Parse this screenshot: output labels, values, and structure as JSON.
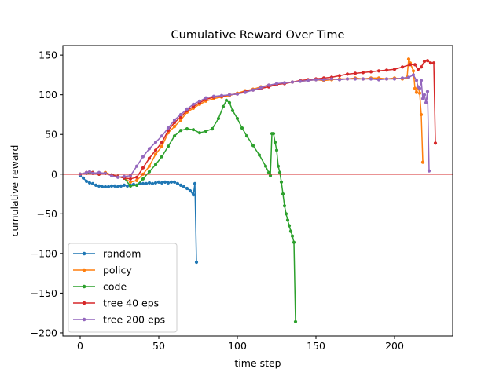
{
  "chart_data": {
    "type": "line",
    "title": "Cumulative Reward Over Time",
    "xlabel": "time step",
    "ylabel": "cumulative reward",
    "xlim": [
      -11,
      237
    ],
    "ylim": [
      -204,
      162
    ],
    "xticks": [
      0,
      50,
      100,
      150,
      200
    ],
    "yticks": [
      -200,
      -150,
      -100,
      -50,
      0,
      50,
      100,
      150
    ],
    "xtick_labels": [
      "0",
      "50",
      "100",
      "150",
      "200"
    ],
    "ytick_labels": [
      "−200",
      "−150",
      "−100",
      "−50",
      "0",
      "50",
      "100",
      "150"
    ],
    "grid": false,
    "legend_position": "lower-left",
    "reference_line": {
      "y": 0,
      "color": "#d62728"
    },
    "series": [
      {
        "name": "random",
        "color": "#1f77b4",
        "points": [
          [
            0,
            -2
          ],
          [
            2,
            -5
          ],
          [
            4,
            -9
          ],
          [
            6,
            -11
          ],
          [
            8,
            -12
          ],
          [
            10,
            -14
          ],
          [
            12,
            -15
          ],
          [
            14,
            -16
          ],
          [
            16,
            -16
          ],
          [
            18,
            -16
          ],
          [
            20,
            -15
          ],
          [
            22,
            -15
          ],
          [
            24,
            -16
          ],
          [
            26,
            -15
          ],
          [
            28,
            -14
          ],
          [
            30,
            -15
          ],
          [
            32,
            -14
          ],
          [
            34,
            -13
          ],
          [
            36,
            -14
          ],
          [
            38,
            -12
          ],
          [
            40,
            -12
          ],
          [
            42,
            -12
          ],
          [
            44,
            -11
          ],
          [
            46,
            -12
          ],
          [
            48,
            -11
          ],
          [
            50,
            -10
          ],
          [
            52,
            -11
          ],
          [
            54,
            -10
          ],
          [
            56,
            -11
          ],
          [
            58,
            -10
          ],
          [
            60,
            -10
          ],
          [
            62,
            -12
          ],
          [
            64,
            -14
          ],
          [
            66,
            -16
          ],
          [
            68,
            -18
          ],
          [
            70,
            -21
          ],
          [
            72,
            -26
          ],
          [
            73,
            -12
          ],
          [
            74,
            -111
          ]
        ]
      },
      {
        "name": "policy",
        "color": "#ff7f0e",
        "points": [
          [
            0,
            0
          ],
          [
            4,
            2
          ],
          [
            8,
            1
          ],
          [
            12,
            0
          ],
          [
            16,
            2
          ],
          [
            20,
            -1
          ],
          [
            24,
            -3
          ],
          [
            28,
            -5
          ],
          [
            32,
            -10
          ],
          [
            36,
            -8
          ],
          [
            40,
            0
          ],
          [
            44,
            10
          ],
          [
            48,
            25
          ],
          [
            52,
            35
          ],
          [
            56,
            52
          ],
          [
            60,
            60
          ],
          [
            64,
            68
          ],
          [
            68,
            78
          ],
          [
            72,
            83
          ],
          [
            76,
            88
          ],
          [
            80,
            92
          ],
          [
            85,
            95
          ],
          [
            90,
            97
          ],
          [
            95,
            99
          ],
          [
            100,
            102
          ],
          [
            105,
            105
          ],
          [
            110,
            107
          ],
          [
            115,
            110
          ],
          [
            120,
            112
          ],
          [
            125,
            113
          ],
          [
            130,
            115
          ],
          [
            135,
            116
          ],
          [
            140,
            117
          ],
          [
            145,
            118
          ],
          [
            150,
            119
          ],
          [
            155,
            118
          ],
          [
            160,
            119
          ],
          [
            165,
            120
          ],
          [
            170,
            120
          ],
          [
            175,
            121
          ],
          [
            180,
            120
          ],
          [
            185,
            121
          ],
          [
            190,
            121
          ],
          [
            195,
            120
          ],
          [
            200,
            121
          ],
          [
            205,
            120
          ],
          [
            208,
            122
          ],
          [
            209,
            145
          ],
          [
            210,
            140
          ],
          [
            212,
            130
          ],
          [
            213,
            108
          ],
          [
            214,
            103
          ],
          [
            215,
            110
          ],
          [
            216,
            102
          ],
          [
            217,
            75
          ],
          [
            218,
            15
          ]
        ]
      },
      {
        "name": "code",
        "color": "#2ca02c",
        "points": [
          [
            0,
            0
          ],
          [
            4,
            1
          ],
          [
            8,
            2
          ],
          [
            12,
            0
          ],
          [
            16,
            1
          ],
          [
            20,
            -1
          ],
          [
            24,
            -3
          ],
          [
            28,
            -5
          ],
          [
            32,
            -15
          ],
          [
            36,
            -14
          ],
          [
            40,
            -6
          ],
          [
            44,
            3
          ],
          [
            48,
            12
          ],
          [
            52,
            22
          ],
          [
            56,
            35
          ],
          [
            60,
            48
          ],
          [
            64,
            55
          ],
          [
            68,
            57
          ],
          [
            72,
            56
          ],
          [
            76,
            52
          ],
          [
            80,
            54
          ],
          [
            84,
            57
          ],
          [
            88,
            70
          ],
          [
            91,
            85
          ],
          [
            93,
            93
          ],
          [
            95,
            90
          ],
          [
            97,
            80
          ],
          [
            100,
            70
          ],
          [
            103,
            58
          ],
          [
            106,
            48
          ],
          [
            110,
            36
          ],
          [
            114,
            24
          ],
          [
            118,
            10
          ],
          [
            120,
            2
          ],
          [
            121,
            -2
          ],
          [
            122,
            51
          ],
          [
            123,
            51
          ],
          [
            124,
            40
          ],
          [
            125,
            30
          ],
          [
            126,
            10
          ],
          [
            127,
            2
          ],
          [
            128,
            -10
          ],
          [
            129,
            -25
          ],
          [
            130,
            -40
          ],
          [
            131,
            -50
          ],
          [
            132,
            -58
          ],
          [
            133,
            -65
          ],
          [
            134,
            -72
          ],
          [
            135,
            -78
          ],
          [
            136,
            -86
          ],
          [
            137,
            -186
          ]
        ]
      },
      {
        "name": "tree 40 eps",
        "color": "#d62728",
        "points": [
          [
            0,
            0
          ],
          [
            4,
            2
          ],
          [
            8,
            2
          ],
          [
            12,
            0
          ],
          [
            16,
            1
          ],
          [
            20,
            -1
          ],
          [
            24,
            -3
          ],
          [
            28,
            -5
          ],
          [
            32,
            -6
          ],
          [
            36,
            -4
          ],
          [
            40,
            8
          ],
          [
            44,
            20
          ],
          [
            48,
            30
          ],
          [
            52,
            40
          ],
          [
            56,
            55
          ],
          [
            60,
            65
          ],
          [
            64,
            72
          ],
          [
            68,
            80
          ],
          [
            72,
            85
          ],
          [
            76,
            90
          ],
          [
            80,
            94
          ],
          [
            85,
            97
          ],
          [
            90,
            98
          ],
          [
            95,
            100
          ],
          [
            100,
            101
          ],
          [
            105,
            104
          ],
          [
            110,
            106
          ],
          [
            115,
            108
          ],
          [
            120,
            110
          ],
          [
            125,
            113
          ],
          [
            130,
            114
          ],
          [
            135,
            116
          ],
          [
            140,
            118
          ],
          [
            145,
            119
          ],
          [
            150,
            120
          ],
          [
            155,
            121
          ],
          [
            160,
            122
          ],
          [
            165,
            124
          ],
          [
            170,
            126
          ],
          [
            175,
            127
          ],
          [
            180,
            128
          ],
          [
            185,
            129
          ],
          [
            190,
            130
          ],
          [
            195,
            131
          ],
          [
            200,
            132
          ],
          [
            205,
            135
          ],
          [
            210,
            138
          ],
          [
            213,
            138
          ],
          [
            215,
            132
          ],
          [
            217,
            135
          ],
          [
            219,
            142
          ],
          [
            221,
            143
          ],
          [
            223,
            140
          ],
          [
            225,
            140
          ],
          [
            226,
            39
          ]
        ]
      },
      {
        "name": "tree 200 eps",
        "color": "#9467bd",
        "points": [
          [
            0,
            0
          ],
          [
            4,
            2
          ],
          [
            6,
            3
          ],
          [
            8,
            1
          ],
          [
            12,
            2
          ],
          [
            16,
            1
          ],
          [
            20,
            -2
          ],
          [
            24,
            -4
          ],
          [
            28,
            -3
          ],
          [
            32,
            -2
          ],
          [
            36,
            10
          ],
          [
            40,
            22
          ],
          [
            44,
            32
          ],
          [
            48,
            40
          ],
          [
            52,
            48
          ],
          [
            56,
            58
          ],
          [
            60,
            68
          ],
          [
            64,
            75
          ],
          [
            68,
            82
          ],
          [
            72,
            88
          ],
          [
            76,
            92
          ],
          [
            80,
            96
          ],
          [
            85,
            98
          ],
          [
            90,
            99
          ],
          [
            95,
            100
          ],
          [
            100,
            101
          ],
          [
            105,
            103
          ],
          [
            110,
            106
          ],
          [
            115,
            109
          ],
          [
            120,
            112
          ],
          [
            125,
            114
          ],
          [
            130,
            115
          ],
          [
            135,
            116
          ],
          [
            140,
            117
          ],
          [
            145,
            118
          ],
          [
            150,
            119
          ],
          [
            155,
            119
          ],
          [
            160,
            120
          ],
          [
            165,
            119
          ],
          [
            170,
            120
          ],
          [
            175,
            120
          ],
          [
            180,
            120
          ],
          [
            185,
            120
          ],
          [
            190,
            119
          ],
          [
            195,
            120
          ],
          [
            200,
            120
          ],
          [
            205,
            121
          ],
          [
            209,
            122
          ],
          [
            212,
            125
          ],
          [
            214,
            118
          ],
          [
            215,
            110
          ],
          [
            216,
            108
          ],
          [
            217,
            118
          ],
          [
            218,
            95
          ],
          [
            219,
            100
          ],
          [
            220,
            90
          ],
          [
            221,
            104
          ],
          [
            222,
            4
          ]
        ]
      }
    ]
  }
}
